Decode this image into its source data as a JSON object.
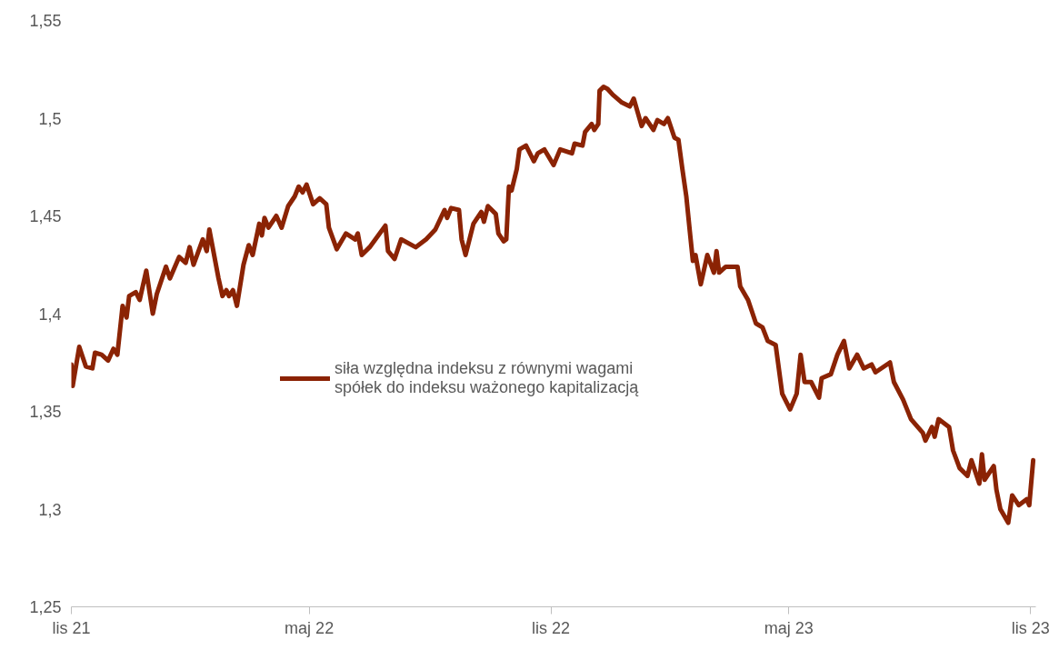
{
  "chart_data": {
    "type": "line",
    "x": [
      "2021-11-01",
      "2021-11-02",
      "2021-11-07",
      "2021-11-12",
      "2021-11-17",
      "2021-11-19",
      "2021-11-24",
      "2021-11-29",
      "2021-12-03",
      "2021-12-06",
      "2021-12-10",
      "2021-12-13",
      "2021-12-15",
      "2021-12-20",
      "2021-12-23",
      "2021-12-28",
      "2022-01-02",
      "2022-01-05",
      "2022-01-12",
      "2022-01-15",
      "2022-01-22",
      "2022-01-27",
      "2022-01-30",
      "2022-02-02",
      "2022-02-09",
      "2022-02-12",
      "2022-02-14",
      "2022-02-21",
      "2022-02-24",
      "2022-02-27",
      "2022-03-01",
      "2022-03-04",
      "2022-03-07",
      "2022-03-12",
      "2022-03-16",
      "2022-03-19",
      "2022-03-24",
      "2022-03-26",
      "2022-03-28",
      "2022-03-31",
      "2022-04-06",
      "2022-04-10",
      "2022-04-15",
      "2022-04-20",
      "2022-04-23",
      "2022-04-26",
      "2022-04-29",
      "2022-05-04",
      "2022-05-09",
      "2022-05-14",
      "2022-05-16",
      "2022-05-22",
      "2022-05-29",
      "2022-06-05",
      "2022-06-07",
      "2022-06-10",
      "2022-06-16",
      "2022-06-28",
      "2022-06-30",
      "2022-07-05",
      "2022-07-10",
      "2022-07-21",
      "2022-07-29",
      "2022-08-05",
      "2022-08-12",
      "2022-08-14",
      "2022-08-17",
      "2022-08-23",
      "2022-08-25",
      "2022-08-28",
      "2022-09-03",
      "2022-09-09",
      "2022-09-11",
      "2022-09-14",
      "2022-09-20",
      "2022-09-22",
      "2022-09-26",
      "2022-09-28",
      "2022-09-30",
      "2022-10-02",
      "2022-10-06",
      "2022-10-08",
      "2022-10-13",
      "2022-10-19",
      "2022-10-22",
      "2022-10-27",
      "2022-11-03",
      "2022-11-08",
      "2022-11-17",
      "2022-11-19",
      "2022-11-25",
      "2022-11-27",
      "2022-12-02",
      "2022-12-04",
      "2022-12-07",
      "2022-12-08",
      "2022-12-11",
      "2022-12-14",
      "2022-12-18",
      "2022-12-25",
      "2022-12-31",
      "2023-01-03",
      "2023-01-09",
      "2023-01-12",
      "2023-01-18",
      "2023-01-21",
      "2023-01-26",
      "2023-01-29",
      "2023-02-03",
      "2023-02-06",
      "2023-02-09",
      "2023-02-12",
      "2023-02-15",
      "2023-02-17",
      "2023-02-19",
      "2023-02-23",
      "2023-02-28",
      "2023-03-05",
      "2023-03-07",
      "2023-03-09",
      "2023-03-14",
      "2023-03-23",
      "2023-03-25",
      "2023-03-31",
      "2023-04-06",
      "2023-04-11",
      "2023-04-15",
      "2023-04-21",
      "2023-04-23",
      "2023-04-26",
      "2023-05-02",
      "2023-05-07",
      "2023-05-10",
      "2023-05-13",
      "2023-05-18",
      "2023-05-24",
      "2023-05-26",
      "2023-06-02",
      "2023-06-07",
      "2023-06-12",
      "2023-06-16",
      "2023-06-22",
      "2023-06-27",
      "2023-07-03",
      "2023-07-06",
      "2023-07-17",
      "2023-07-20",
      "2023-07-27",
      "2023-08-02",
      "2023-08-11",
      "2023-08-13",
      "2023-08-18",
      "2023-08-20",
      "2023-08-23",
      "2023-08-31",
      "2023-09-03",
      "2023-09-08",
      "2023-09-14",
      "2023-09-17",
      "2023-09-23",
      "2023-09-25",
      "2023-09-27",
      "2023-10-04",
      "2023-10-06",
      "2023-10-09",
      "2023-10-15",
      "2023-10-18",
      "2023-10-23",
      "2023-10-29",
      "2023-10-31",
      "2023-11-03"
    ],
    "series": [
      {
        "name": "siła względna indeksu z równymi wagami spółek do indeksu ważonego kapitalizacją",
        "color": "#8b2304",
        "values": [
          1.374,
          1.363,
          1.383,
          1.373,
          1.372,
          1.38,
          1.379,
          1.376,
          1.382,
          1.379,
          1.404,
          1.398,
          1.409,
          1.411,
          1.407,
          1.422,
          1.4,
          1.41,
          1.424,
          1.418,
          1.429,
          1.426,
          1.434,
          1.425,
          1.438,
          1.432,
          1.443,
          1.418,
          1.409,
          1.412,
          1.409,
          1.412,
          1.404,
          1.425,
          1.435,
          1.43,
          1.446,
          1.44,
          1.449,
          1.444,
          1.45,
          1.444,
          1.455,
          1.46,
          1.465,
          1.462,
          1.466,
          1.456,
          1.459,
          1.456,
          1.444,
          1.433,
          1.441,
          1.438,
          1.441,
          1.43,
          1.434,
          1.445,
          1.432,
          1.428,
          1.438,
          1.434,
          1.438,
          1.443,
          1.453,
          1.449,
          1.454,
          1.453,
          1.438,
          1.43,
          1.446,
          1.452,
          1.447,
          1.455,
          1.451,
          1.441,
          1.437,
          1.438,
          1.465,
          1.463,
          1.474,
          1.484,
          1.486,
          1.478,
          1.482,
          1.484,
          1.476,
          1.484,
          1.482,
          1.487,
          1.486,
          1.493,
          1.497,
          1.494,
          1.497,
          1.514,
          1.516,
          1.515,
          1.512,
          1.508,
          1.506,
          1.51,
          1.496,
          1.5,
          1.494,
          1.499,
          1.497,
          1.5,
          1.49,
          1.489,
          1.474,
          1.46,
          1.44,
          1.427,
          1.43,
          1.415,
          1.43,
          1.421,
          1.432,
          1.421,
          1.424,
          1.424,
          1.414,
          1.407,
          1.395,
          1.393,
          1.386,
          1.384,
          1.374,
          1.359,
          1.351,
          1.359,
          1.379,
          1.365,
          1.365,
          1.357,
          1.367,
          1.369,
          1.379,
          1.386,
          1.372,
          1.379,
          1.372,
          1.374,
          1.37,
          1.375,
          1.365,
          1.356,
          1.346,
          1.339,
          1.335,
          1.342,
          1.337,
          1.346,
          1.342,
          1.33,
          1.321,
          1.317,
          1.325,
          1.313,
          1.328,
          1.315,
          1.322,
          1.31,
          1.3,
          1.293,
          1.307,
          1.302,
          1.305,
          1.302,
          1.325
        ]
      }
    ],
    "xlim": [
      "2021-11-01",
      "2023-11-05"
    ],
    "xticks": [
      {
        "value": "2021-11-01",
        "label": "lis 21"
      },
      {
        "value": "2022-05-01",
        "label": "maj 22"
      },
      {
        "value": "2022-11-01",
        "label": "lis 22"
      },
      {
        "value": "2023-05-01",
        "label": "maj 23"
      },
      {
        "value": "2023-11-01",
        "label": "lis 23"
      }
    ],
    "ylim": [
      1.25,
      1.55
    ],
    "yticks": [
      {
        "value": 1.25,
        "label": "1,25"
      },
      {
        "value": 1.3,
        "label": "1,3"
      },
      {
        "value": 1.35,
        "label": "1,35"
      },
      {
        "value": 1.4,
        "label": "1,4"
      },
      {
        "value": 1.45,
        "label": "1,45"
      },
      {
        "value": 1.5,
        "label": "1,5"
      },
      {
        "value": 1.55,
        "label": "1,55"
      }
    ],
    "grid": false,
    "legend": "center",
    "line_style": "solid",
    "marker": "none"
  }
}
